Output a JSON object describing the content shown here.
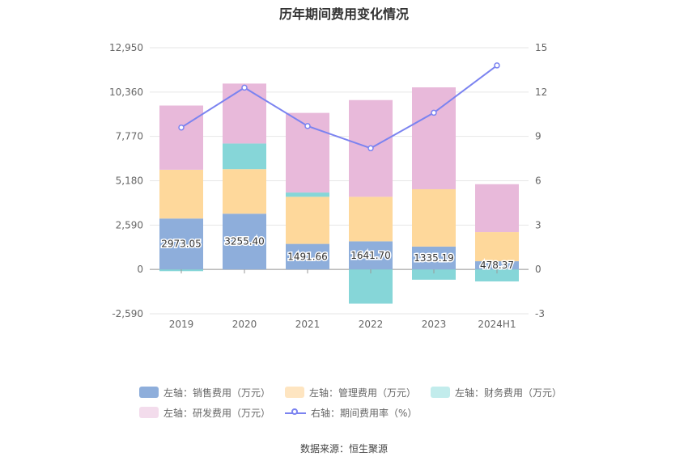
{
  "title": "历年期间费用变化情况",
  "source": "数据来源：恒生聚源",
  "chart_data": {
    "type": "bar",
    "stacked": true,
    "categories": [
      "2019",
      "2020",
      "2021",
      "2022",
      "2023",
      "2024H1"
    ],
    "left_axis": {
      "ylim": [
        -2590,
        12950
      ],
      "ticks": [
        "-2,590",
        "0",
        "2,590",
        "5,180",
        "7,770",
        "10,360",
        "12,950"
      ]
    },
    "right_axis": {
      "ylim": [
        -3,
        15
      ],
      "ticks": [
        "-3",
        "0",
        "3",
        "6",
        "9",
        "12",
        "15"
      ]
    },
    "series": [
      {
        "name": "左轴：销售费用（万元）",
        "type": "bar",
        "color": "#8eaedb",
        "values": [
          2973.05,
          3255.4,
          1491.66,
          1641.7,
          1335.19,
          478.37
        ],
        "labels": [
          "2973.05",
          "3255.40",
          "1491.66",
          "1641.70",
          "1335.19",
          "478.37"
        ]
      },
      {
        "name": "左轴：管理费用（万元）",
        "type": "bar",
        "color": "#fed89b",
        "values": [
          2850,
          2600,
          2750,
          2600,
          3350,
          1700
        ]
      },
      {
        "name": "左轴：财务费用（万元）",
        "type": "bar",
        "color": "#86d6d8",
        "values": [
          -100,
          1500,
          250,
          -2000,
          -600,
          -700
        ]
      },
      {
        "name": "左轴：研发费用（万元）",
        "type": "bar",
        "color": "#e8b9da",
        "values": [
          3750,
          3500,
          4650,
          5650,
          5950,
          2800
        ]
      },
      {
        "name": "右轴：期间费用率（%）",
        "type": "line",
        "axis": "right",
        "color": "#7b83f0",
        "values": [
          9.6,
          12.3,
          9.7,
          8.2,
          10.6,
          13.8
        ]
      }
    ],
    "legend_position": "bottom",
    "grid": true
  },
  "legend": {
    "items": [
      {
        "label": "左轴：销售费用（万元）",
        "color": "#8eaedb",
        "kind": "box"
      },
      {
        "label": "左轴：管理费用（万元）",
        "color": "#fee5c1",
        "kind": "box"
      },
      {
        "label": "左轴：财务费用（万元）",
        "color": "#c2ecec",
        "kind": "box"
      },
      {
        "label": "左轴：研发费用（万元）",
        "color": "#f3dcec",
        "kind": "box"
      },
      {
        "label": "右轴：期间费用率（%）",
        "color": "#7b83f0",
        "kind": "line"
      }
    ]
  }
}
